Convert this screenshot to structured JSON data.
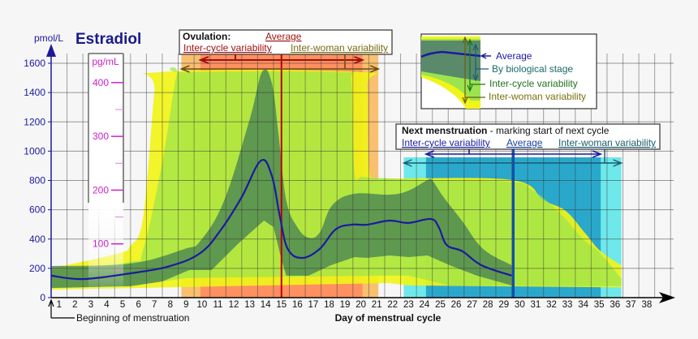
{
  "chart_data": {
    "type": "area",
    "title": "Estradiol",
    "ylabel": "pmol/L",
    "xlabel": "Day of menstrual cycle",
    "secondary_ylabel": "pg/mL",
    "ylim": [
      0,
      1600
    ],
    "yticks": [
      0,
      200,
      400,
      600,
      800,
      1000,
      1200,
      1400,
      1600
    ],
    "secondary_yticks": [
      100,
      200,
      300,
      400
    ],
    "secondary_ytick_pmol": [
      367,
      734,
      1101,
      1468
    ],
    "xticks": [
      1,
      2,
      3,
      4,
      5,
      6,
      7,
      8,
      9,
      10,
      11,
      12,
      13,
      14,
      15,
      16,
      17,
      18,
      19,
      20,
      21,
      22,
      23,
      24,
      25,
      26,
      27,
      28,
      29,
      30,
      31,
      32,
      33,
      34,
      35,
      36,
      37,
      38
    ],
    "grid": true,
    "x_annotation": "Beginning of menstruation",
    "series": [
      {
        "name": "Average",
        "color": "#1a1aa0",
        "points": [
          [
            0.5,
            150
          ],
          [
            2.5,
            127
          ],
          [
            5.5,
            166
          ],
          [
            8,
            216
          ],
          [
            9.9,
            305
          ],
          [
            11.2,
            465
          ],
          [
            12.5,
            687
          ],
          [
            13.7,
            935
          ],
          [
            14.4,
            830
          ],
          [
            14.9,
            554
          ],
          [
            15.4,
            332
          ],
          [
            16.3,
            271
          ],
          [
            17.4,
            332
          ],
          [
            18.4,
            465
          ],
          [
            19.4,
            498
          ],
          [
            20.4,
            498
          ],
          [
            21.8,
            526
          ],
          [
            23,
            510
          ],
          [
            24.4,
            537
          ],
          [
            24.9,
            482
          ],
          [
            25.4,
            360
          ],
          [
            26.4,
            316
          ],
          [
            27.6,
            221
          ],
          [
            29.5,
            150
          ]
        ]
      }
    ],
    "bands": [
      {
        "name": "Inter-woman variability",
        "color": "#f0f418",
        "upper": [
          [
            0.5,
            200
          ],
          [
            4.6,
            299
          ],
          [
            5.5,
            354
          ],
          [
            6.3,
            554
          ],
          [
            7,
            1406
          ],
          [
            7.3,
            1539
          ],
          [
            20.1,
            1539
          ],
          [
            20.4,
            1440
          ],
          [
            20.6,
            830
          ],
          [
            21.8,
            814
          ],
          [
            29.5,
            803
          ],
          [
            31.5,
            665
          ],
          [
            32.9,
            592
          ],
          [
            34.1,
            443
          ],
          [
            35.1,
            316
          ],
          [
            36.4,
            221
          ]
        ],
        "lower": [
          [
            0.5,
            55
          ],
          [
            21.8,
            100
          ],
          [
            23,
            83
          ],
          [
            36.4,
            70
          ]
        ]
      },
      {
        "name": "Inter-cycle variability",
        "color": "#9be44e",
        "upper": [
          [
            0.5,
            183
          ],
          [
            5.5,
            244
          ],
          [
            6.3,
            332
          ],
          [
            7.5,
            925
          ],
          [
            8.4,
            1517
          ],
          [
            8.9,
            1539
          ],
          [
            18.9,
            1539
          ],
          [
            19.4,
            1478
          ],
          [
            19.6,
            853
          ],
          [
            20.1,
            825
          ],
          [
            21.8,
            814
          ],
          [
            24.5,
            803
          ],
          [
            29.5,
            790
          ],
          [
            30.7,
            742
          ],
          [
            32.4,
            592
          ],
          [
            34.1,
            388
          ],
          [
            35.1,
            300
          ],
          [
            36.4,
            130
          ]
        ],
        "lower": [
          [
            0.5,
            66
          ],
          [
            5.5,
            78
          ],
          [
            8.9,
            133
          ],
          [
            11.4,
            138
          ],
          [
            21.8,
            150
          ],
          [
            23,
            150
          ],
          [
            25.6,
            83
          ],
          [
            36.4,
            78
          ]
        ]
      },
      {
        "name": "By biological stage",
        "color": "#3f7a55",
        "upper": [
          [
            0.5,
            216
          ],
          [
            5.5,
            233
          ],
          [
            8.9,
            332
          ],
          [
            9.9,
            388
          ],
          [
            11.4,
            665
          ],
          [
            13,
            1218
          ],
          [
            13.8,
            1545
          ],
          [
            14.4,
            1462
          ],
          [
            14.8,
            1130
          ],
          [
            15.3,
            665
          ],
          [
            16,
            482
          ],
          [
            16.7,
            410
          ],
          [
            17.4,
            443
          ],
          [
            18.2,
            631
          ],
          [
            19.6,
            709
          ],
          [
            21.8,
            703
          ],
          [
            23,
            731
          ],
          [
            24.2,
            803
          ],
          [
            24.5,
            800
          ],
          [
            25.2,
            687
          ],
          [
            26.4,
            520
          ],
          [
            27.7,
            332
          ],
          [
            29.5,
            221
          ]
        ],
        "lower": [
          [
            0.5,
            66
          ],
          [
            5.5,
            78
          ],
          [
            7.5,
            111
          ],
          [
            9.2,
            188
          ],
          [
            10.6,
            188
          ],
          [
            12.3,
            371
          ],
          [
            13.9,
            526
          ],
          [
            14.5,
            482
          ],
          [
            15,
            260
          ],
          [
            15.3,
            150
          ],
          [
            16.7,
            150
          ],
          [
            18.1,
            221
          ],
          [
            19.6,
            277
          ],
          [
            20.4,
            271
          ],
          [
            21.8,
            288
          ],
          [
            23,
            277
          ],
          [
            24.2,
            288
          ],
          [
            25.6,
            221
          ],
          [
            27.3,
            150
          ],
          [
            29.5,
            83
          ]
        ]
      }
    ],
    "ovulation": {
      "heading": "Ovulation:",
      "average_label": "Average",
      "inter_cycle_label": "Inter-cycle variability",
      "inter_woman_label": "Inter-woman variability",
      "average_day": 15,
      "inter_cycle_range": [
        9.9,
        20.1
      ],
      "inter_woman_range": [
        8.7,
        21.1
      ],
      "colors": {
        "average": "#c00000",
        "inter_cycle": "#ff9060",
        "inter_woman": "#f9c070"
      }
    },
    "next_menstruation": {
      "heading": "Next menstruation",
      "subheading": " - marking start of next cycle",
      "inter_cycle_label": "Inter-cycle variability",
      "average_label": "Average",
      "inter_woman_label": "Inter-woman variability",
      "average_day": 29.6,
      "inter_cycle_range": [
        24.1,
        35.1
      ],
      "inter_woman_range": [
        22.7,
        36.4
      ],
      "colors": {
        "average": "#1050b0",
        "inter_cycle": "#2aa8cc",
        "inter_woman": "#6ee8ea"
      }
    },
    "legend": {
      "placement": "top-right",
      "items": [
        "Average",
        "By biological stage",
        "Inter-cycle variability",
        "Inter-woman variability"
      ]
    }
  }
}
